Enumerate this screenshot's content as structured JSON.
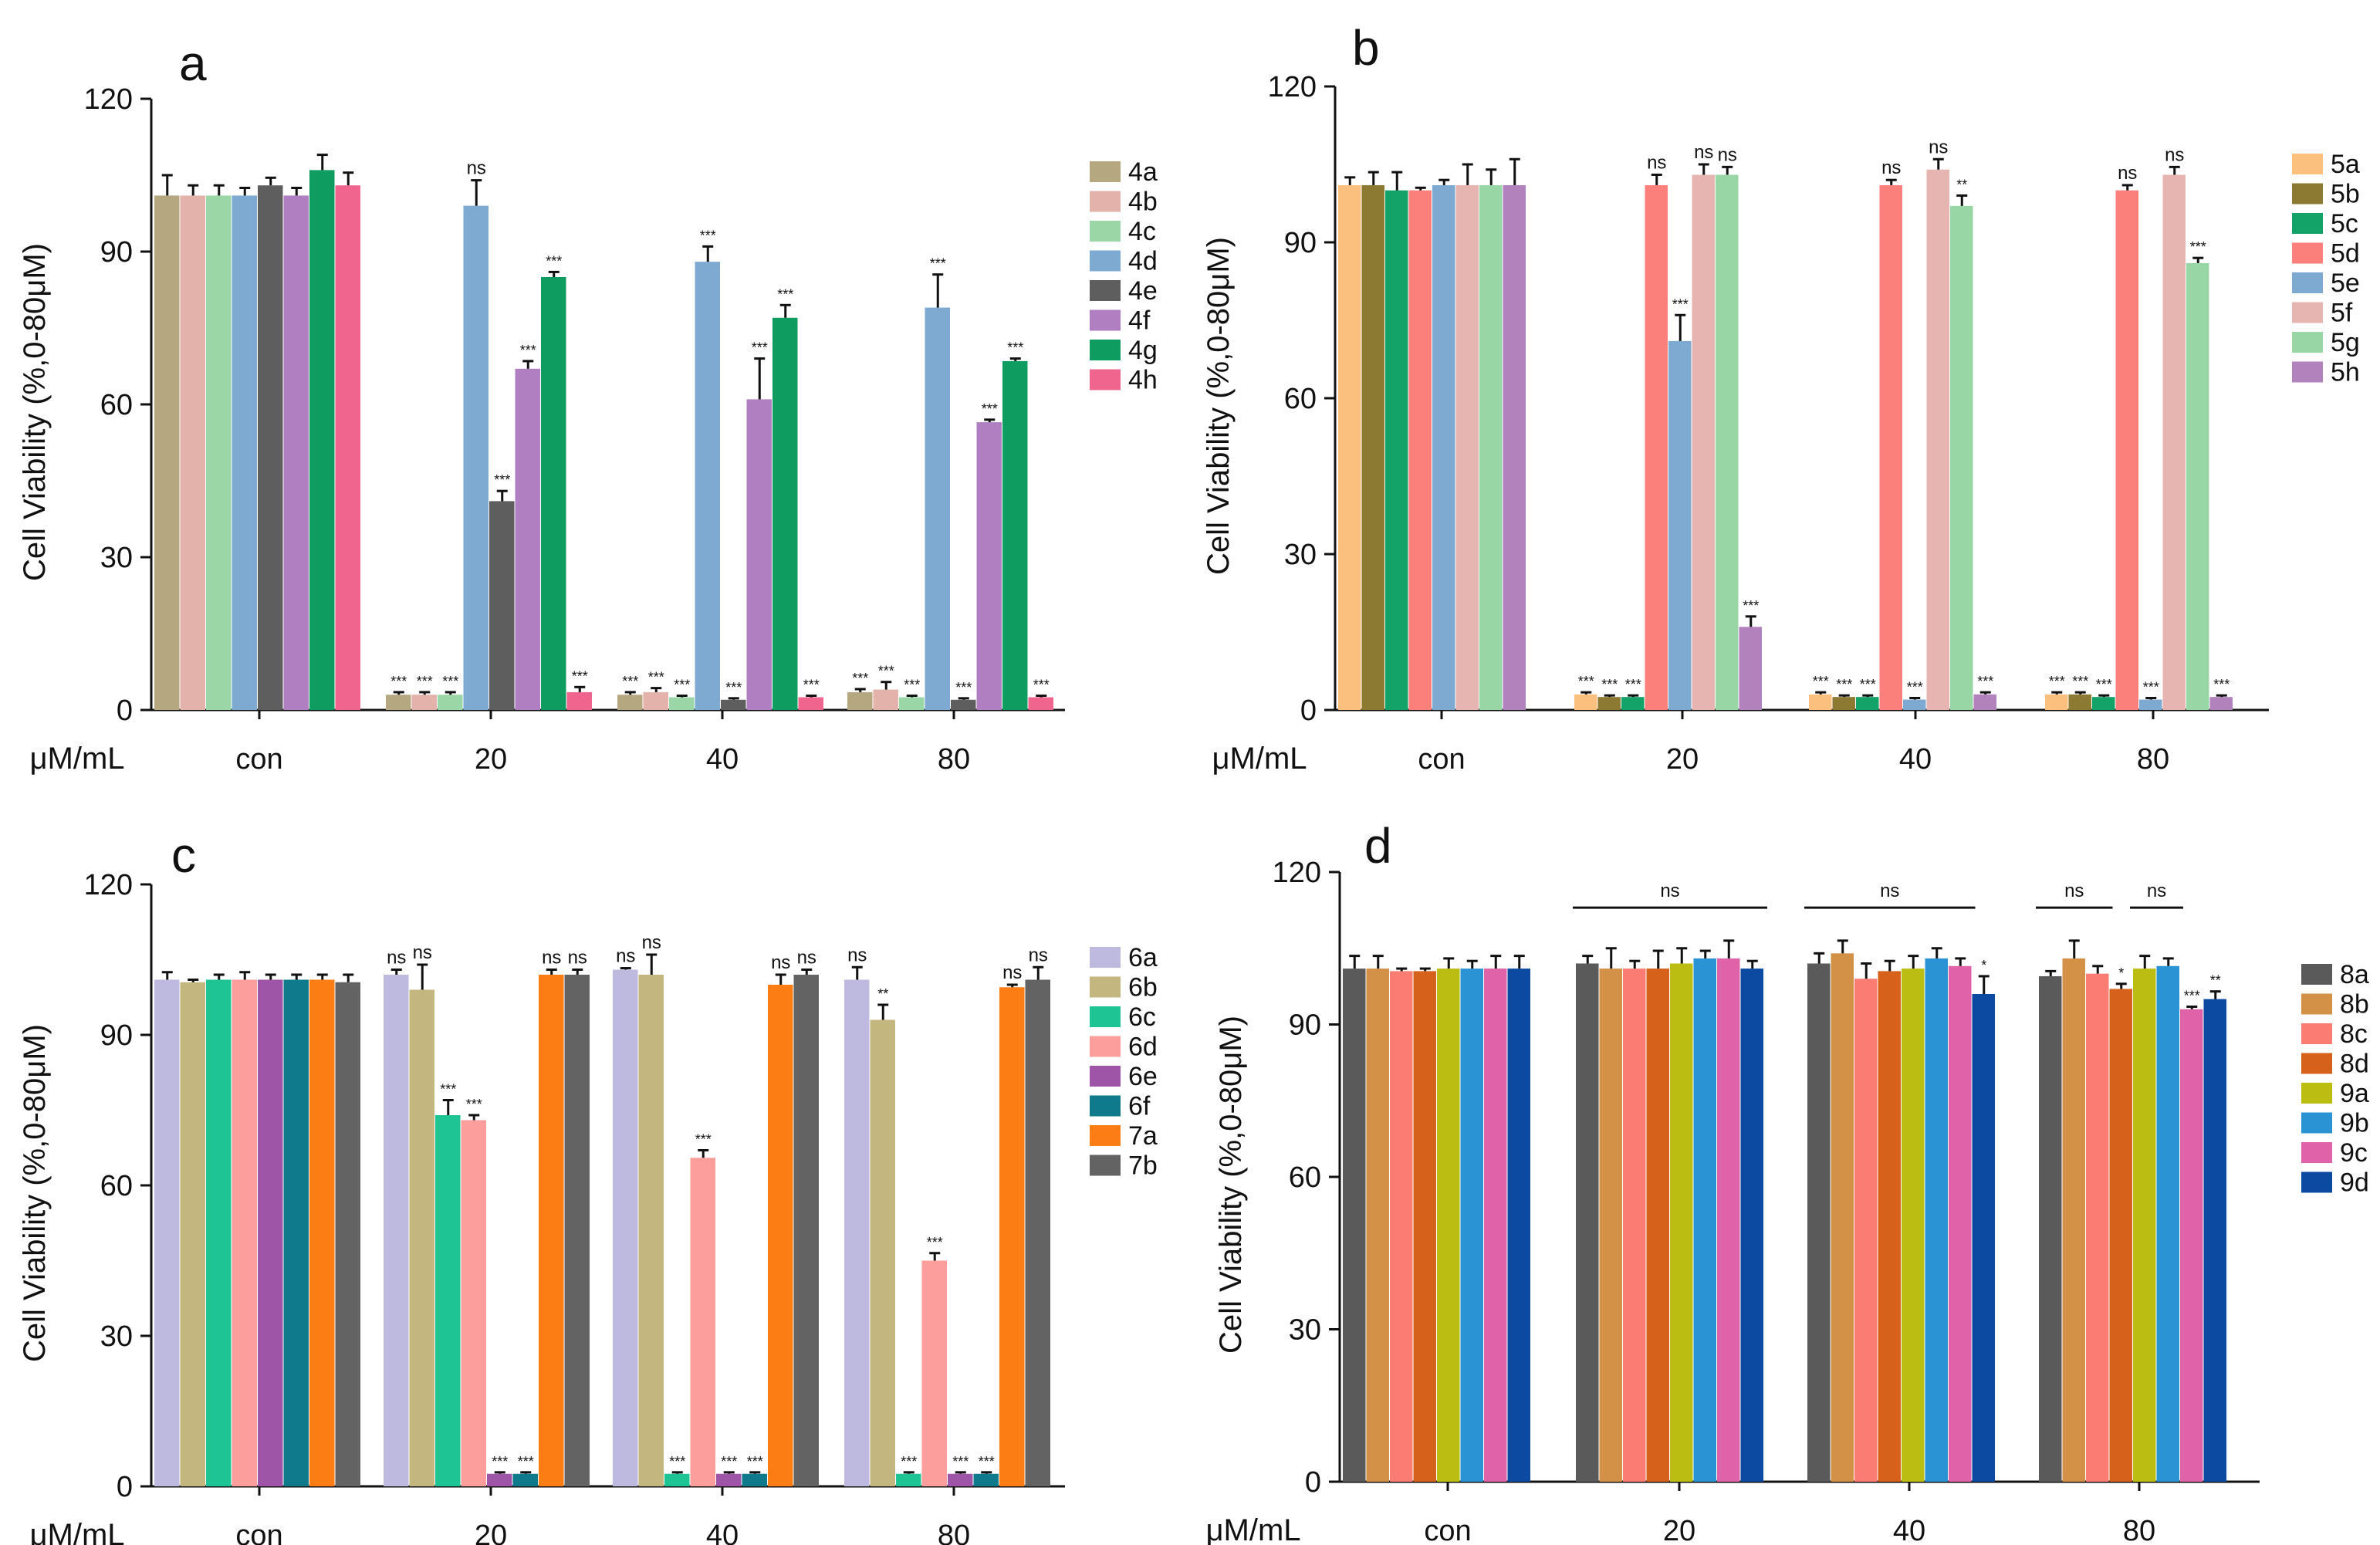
{
  "chart_data": [
    {
      "type": "bar",
      "panel": "a",
      "ylabel": "Cell Viability (%,0-80μM)",
      "x_unit_label": "μM/mL",
      "yticks": [
        0,
        30,
        60,
        90,
        120
      ],
      "ylim": [
        0,
        120
      ],
      "categories": [
        "con",
        "20",
        "40",
        "80"
      ],
      "legend_position": "right",
      "series": [
        {
          "name": "4a",
          "color": "#b5a880",
          "values": [
            101,
            3,
            3,
            3.5
          ],
          "errors": [
            4,
            0.5,
            0.5,
            0.6
          ],
          "sig": [
            "",
            "***",
            "***",
            "***"
          ]
        },
        {
          "name": "4b",
          "color": "#e2b2ab",
          "values": [
            101,
            3,
            3.5,
            4
          ],
          "errors": [
            2,
            0.5,
            0.8,
            1.5
          ],
          "sig": [
            "",
            "***",
            "***",
            "***"
          ]
        },
        {
          "name": "4c",
          "color": "#9bd6a7",
          "values": [
            101,
            3,
            2.5,
            2.5
          ],
          "errors": [
            2,
            0.5,
            0.3,
            0.3
          ],
          "sig": [
            "",
            "***",
            "***",
            "***"
          ]
        },
        {
          "name": "4d",
          "color": "#7ea9d1",
          "values": [
            101,
            99,
            88,
            79
          ],
          "errors": [
            1.5,
            5,
            3,
            6.5
          ],
          "sig": [
            "",
            "ns",
            "***",
            "***"
          ]
        },
        {
          "name": "4e",
          "color": "#5e5e5e",
          "values": [
            103,
            41,
            2,
            2
          ],
          "errors": [
            1.5,
            2,
            0.3,
            0.3
          ],
          "sig": [
            "",
            "***",
            "***",
            "***"
          ]
        },
        {
          "name": "4f",
          "color": "#b07fc1",
          "values": [
            101,
            67,
            61,
            56.5
          ],
          "errors": [
            1.5,
            1.5,
            8,
            0.5
          ],
          "sig": [
            "",
            "***",
            "***",
            "***"
          ]
        },
        {
          "name": "4g",
          "color": "#0e9c60",
          "values": [
            106,
            85,
            77,
            68.5
          ],
          "errors": [
            3,
            1,
            2.5,
            0.5
          ],
          "sig": [
            "",
            "***",
            "***",
            "***"
          ]
        },
        {
          "name": "4h",
          "color": "#f0658e",
          "values": [
            103,
            3.5,
            2.5,
            2.5
          ],
          "errors": [
            2.5,
            1,
            0.3,
            0.3
          ],
          "sig": [
            "",
            "***",
            "***",
            "***"
          ]
        }
      ]
    },
    {
      "type": "bar",
      "panel": "b",
      "ylabel": "Cell Viability (%,0-80μM)",
      "x_unit_label": "μM/mL",
      "yticks": [
        0,
        30,
        60,
        90,
        120
      ],
      "ylim": [
        0,
        120
      ],
      "categories": [
        "con",
        "20",
        "40",
        "80"
      ],
      "legend_position": "right",
      "series": [
        {
          "name": "5a",
          "color": "#fbbf7e",
          "values": [
            101,
            3,
            3,
            3
          ],
          "errors": [
            1.5,
            0.4,
            0.4,
            0.4
          ],
          "sig": [
            "",
            "***",
            "***",
            "***"
          ]
        },
        {
          "name": "5b",
          "color": "#8d7a32",
          "values": [
            101,
            2.5,
            2.5,
            3
          ],
          "errors": [
            2.5,
            0.3,
            0.3,
            0.4
          ],
          "sig": [
            "",
            "***",
            "***",
            "***"
          ]
        },
        {
          "name": "5c",
          "color": "#13a268",
          "values": [
            100,
            2.5,
            2.5,
            2.5
          ],
          "errors": [
            3.5,
            0.3,
            0.3,
            0.3
          ],
          "sig": [
            "",
            "***",
            "***",
            "***"
          ]
        },
        {
          "name": "5d",
          "color": "#fb7f7b",
          "values": [
            100,
            101,
            101,
            100
          ],
          "errors": [
            0.5,
            2,
            1,
            1
          ],
          "sig": [
            "",
            "ns",
            "ns",
            "ns"
          ]
        },
        {
          "name": "5e",
          "color": "#7ea9d1",
          "values": [
            101,
            71,
            2,
            2
          ],
          "errors": [
            1,
            5,
            0.3,
            0.3
          ],
          "sig": [
            "",
            "***",
            "***",
            "***"
          ]
        },
        {
          "name": "5f",
          "color": "#e6b5b1",
          "values": [
            101,
            103,
            104,
            103
          ],
          "errors": [
            4,
            2,
            2,
            1.5
          ],
          "sig": [
            "",
            "ns",
            "ns",
            "ns"
          ]
        },
        {
          "name": "5g",
          "color": "#98d6a5",
          "values": [
            101,
            103,
            97,
            86
          ],
          "errors": [
            3,
            1.5,
            2,
            1
          ],
          "sig": [
            "",
            "ns",
            "**",
            "***"
          ]
        },
        {
          "name": "5h",
          "color": "#b282bd",
          "values": [
            101,
            16,
            3,
            2.5
          ],
          "errors": [
            5,
            2,
            0.4,
            0.3
          ],
          "sig": [
            "",
            "***",
            "***",
            "***"
          ]
        }
      ]
    },
    {
      "type": "bar",
      "panel": "c",
      "ylabel": "Cell Viability (%,0-80μM)",
      "x_unit_label": "μM/mL",
      "yticks": [
        0,
        30,
        60,
        90,
        120
      ],
      "ylim": [
        0,
        120
      ],
      "categories": [
        "con",
        "20",
        "40",
        "80"
      ],
      "legend_position": "right",
      "series": [
        {
          "name": "6a",
          "color": "#bebadf",
          "values": [
            101,
            102,
            103,
            101
          ],
          "errors": [
            1.5,
            1,
            0.3,
            2.5
          ],
          "sig": [
            "",
            "ns",
            "ns",
            "ns"
          ]
        },
        {
          "name": "6b",
          "color": "#c3b67e",
          "values": [
            100.5,
            99,
            102,
            93
          ],
          "errors": [
            0.5,
            5,
            4,
            3
          ],
          "sig": [
            "",
            "ns",
            "ns",
            "**"
          ]
        },
        {
          "name": "6c",
          "color": "#1ec494",
          "values": [
            101,
            74,
            2.5,
            2.5
          ],
          "errors": [
            1,
            3,
            0.3,
            0.3
          ],
          "sig": [
            "",
            "***",
            "***",
            "***"
          ]
        },
        {
          "name": "6d",
          "color": "#fb9e9c",
          "values": [
            101,
            73,
            65.5,
            45
          ],
          "errors": [
            1.5,
            1,
            1.5,
            1.5
          ],
          "sig": [
            "",
            "***",
            "***",
            "***"
          ]
        },
        {
          "name": "6e",
          "color": "#9f55a7",
          "values": [
            101,
            2.5,
            2.5,
            2.5
          ],
          "errors": [
            1,
            0.3,
            0.3,
            0.3
          ],
          "sig": [
            "",
            "***",
            "***",
            "***"
          ]
        },
        {
          "name": "6f",
          "color": "#0e7a8b",
          "values": [
            101,
            2.5,
            2.5,
            2.5
          ],
          "errors": [
            1,
            0.3,
            0.3,
            0.3
          ],
          "sig": [
            "",
            "***",
            "***",
            "***"
          ]
        },
        {
          "name": "7a",
          "color": "#fb7d14",
          "values": [
            101,
            102,
            100,
            99.5
          ],
          "errors": [
            1,
            1,
            2,
            0.5
          ],
          "sig": [
            "",
            "ns",
            "ns",
            "ns"
          ]
        },
        {
          "name": "7b",
          "color": "#636363",
          "values": [
            100.5,
            102,
            102,
            101
          ],
          "errors": [
            1.5,
            1,
            1,
            2.5
          ],
          "sig": [
            "",
            "ns",
            "ns",
            "ns"
          ]
        }
      ]
    },
    {
      "type": "bar",
      "panel": "d",
      "ylabel": "Cell Viability (%,0-80μM)",
      "x_unit_label": "μM/mL",
      "yticks": [
        0,
        30,
        60,
        90,
        120
      ],
      "ylim": [
        0,
        120
      ],
      "categories": [
        "con",
        "20",
        "40",
        "80"
      ],
      "legend_position": "right",
      "group_annotations": [
        {
          "label": "ns",
          "category": "20",
          "from_series": 0,
          "to_series": 7
        },
        {
          "label": "ns",
          "category": "40",
          "from_series": 0,
          "to_series": 6
        },
        {
          "label": "ns",
          "category": "80",
          "from_series": 0,
          "to_series": 2
        },
        {
          "label": "ns",
          "category": "80",
          "from_series": 4,
          "to_series": 5
        }
      ],
      "series": [
        {
          "name": "8a",
          "color": "#5a5a5a",
          "values": [
            101,
            102,
            102,
            99.5
          ],
          "errors": [
            2.5,
            1.5,
            2,
            1
          ],
          "sig": [
            "",
            "",
            "",
            ""
          ]
        },
        {
          "name": "8b",
          "color": "#d29146",
          "values": [
            101,
            101,
            104,
            103
          ],
          "errors": [
            2.5,
            4,
            2.5,
            3.5
          ],
          "sig": [
            "",
            "",
            "",
            ""
          ]
        },
        {
          "name": "8c",
          "color": "#fb7c72",
          "values": [
            100.5,
            101,
            99,
            100
          ],
          "errors": [
            0.5,
            1.5,
            3,
            1.5
          ],
          "sig": [
            "",
            "",
            "",
            ""
          ]
        },
        {
          "name": "8d",
          "color": "#d5611b",
          "values": [
            100.5,
            101,
            100.5,
            97
          ],
          "errors": [
            0.5,
            3.5,
            2,
            1
          ],
          "sig": [
            "",
            "",
            "",
            "*"
          ]
        },
        {
          "name": "9a",
          "color": "#bbbd12",
          "values": [
            101,
            102,
            101,
            101
          ],
          "errors": [
            2,
            3,
            2.5,
            2.5
          ],
          "sig": [
            "",
            "",
            "",
            ""
          ]
        },
        {
          "name": "9b",
          "color": "#2a93d3",
          "values": [
            101,
            103,
            103,
            101.5
          ],
          "errors": [
            1.5,
            1.5,
            2,
            1.5
          ],
          "sig": [
            "",
            "",
            "",
            ""
          ]
        },
        {
          "name": "9c",
          "color": "#e062a8",
          "values": [
            101,
            103,
            101.5,
            93
          ],
          "errors": [
            2.5,
            3.5,
            1.5,
            0.5
          ],
          "sig": [
            "",
            "",
            "",
            "***"
          ]
        },
        {
          "name": "9d",
          "color": "#0c4aa2",
          "values": [
            101,
            101,
            96,
            95
          ],
          "errors": [
            2.5,
            1.5,
            3.5,
            1.5
          ],
          "sig": [
            "",
            "",
            "*",
            "**"
          ]
        }
      ]
    }
  ]
}
